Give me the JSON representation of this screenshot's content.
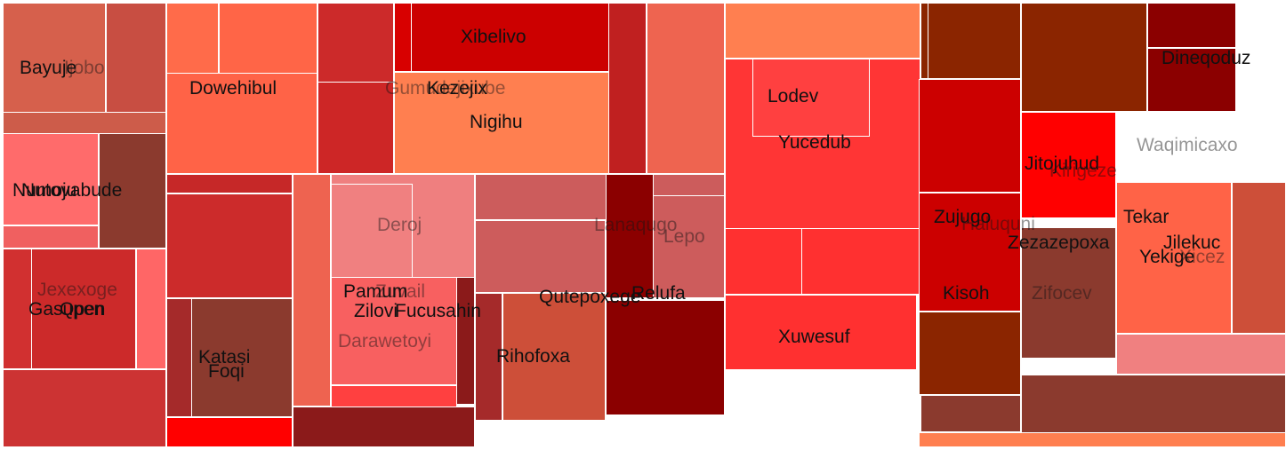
{
  "chart_data": {
    "type": "treemap",
    "title": "",
    "labels": [
      {
        "name": "Bayuje",
        "faded": false
      },
      {
        "name": "Ijobo",
        "faded": true
      },
      {
        "name": "Numoju",
        "faded": false
      },
      {
        "name": "Nutovabude",
        "faded": false
      },
      {
        "name": "Gasupen",
        "faded": false
      },
      {
        "name": "Qpen",
        "faded": false
      },
      {
        "name": "Jexexoge",
        "faded": true
      },
      {
        "name": "Dowehibul",
        "faded": false
      },
      {
        "name": "Katasi",
        "faded": false
      },
      {
        "name": "Foqi",
        "faded": false
      },
      {
        "name": "Deroj",
        "faded": true
      },
      {
        "name": "Pamum",
        "faded": false
      },
      {
        "name": "Zilovi",
        "faded": false
      },
      {
        "name": "Zuvail",
        "faded": true
      },
      {
        "name": "Fucusahin",
        "faded": false
      },
      {
        "name": "Darawetoyi",
        "faded": true
      },
      {
        "name": "Xibelivo",
        "faded": false
      },
      {
        "name": "Gumudejixube",
        "faded": true
      },
      {
        "name": "Kezejix",
        "faded": false
      },
      {
        "name": "Nigihu",
        "faded": false
      },
      {
        "name": "Lanaqugo",
        "faded": true
      },
      {
        "name": "Lepo",
        "faded": true
      },
      {
        "name": "Qutepoxege",
        "faded": false
      },
      {
        "name": "Relufa",
        "faded": false
      },
      {
        "name": "Rihofoxa",
        "faded": false
      },
      {
        "name": "Lodev",
        "faded": false
      },
      {
        "name": "Yucedub",
        "faded": false
      },
      {
        "name": "Xuwesuf",
        "faded": false
      },
      {
        "name": "Zujugo",
        "faded": false
      },
      {
        "name": "Haluquni",
        "faded": true
      },
      {
        "name": "Kisoh",
        "faded": false
      },
      {
        "name": "Zezazepoxa",
        "faded": false
      },
      {
        "name": "Zifocev",
        "faded": true
      },
      {
        "name": "Jitojuhud",
        "faded": false
      },
      {
        "name": "Kirigeze",
        "faded": true
      },
      {
        "name": "Dineqoduz",
        "faded": false
      },
      {
        "name": "Waqimicaxo",
        "faded": true
      },
      {
        "name": "Tekar",
        "faded": false
      },
      {
        "name": "Jilekuc",
        "faded": false
      },
      {
        "name": "Yekige",
        "faded": false
      },
      {
        "name": "Xicez",
        "faded": true
      }
    ],
    "cell_colors": [
      "#cd5c4a",
      "#d6604c",
      "#c84e42",
      "#ff6b6b",
      "#f06060",
      "#8b3a2e",
      "#cc2a2a",
      "#ff6666",
      "#d13030",
      "#cc3333",
      "#ff6347",
      "#ff6b4a",
      "#ff6547",
      "#cd2626",
      "#cc2a2a",
      "#c62828",
      "#cc2b2b",
      "#a52a2a",
      "#8b3a2e",
      "#ff0000",
      "#ee6350",
      "#ff7f50",
      "#ef7f7f",
      "#f08080",
      "#f86060",
      "#8b1a1a",
      "#ff4040",
      "#d80000",
      "#c02020",
      "#8b1a1a",
      "#cc0000",
      "#cc0000",
      "#ff7f50",
      "#ee6450",
      "#cd2626",
      "#cc5c5c",
      "#cd5c5c",
      "#8b0000",
      "#cd5c5c",
      "#8b0000",
      "#cd4f39",
      "#a52a2a",
      "#ff7f50",
      "#ff3535",
      "#ff4040",
      "#ff3030",
      "#ff3030",
      "#ff3030",
      "#8b2500",
      "#8b2500",
      "#cc0000",
      "#cc0000",
      "#8b2500",
      "#8b3a2e",
      "#8b2500",
      "#cd2626",
      "#ff0000",
      "#8b0000",
      "#8b0000",
      "#8b3a2e",
      "#ff6347",
      "#f08080",
      "#cd4f39",
      "#8b3a2e",
      "#ff7f50"
    ]
  }
}
